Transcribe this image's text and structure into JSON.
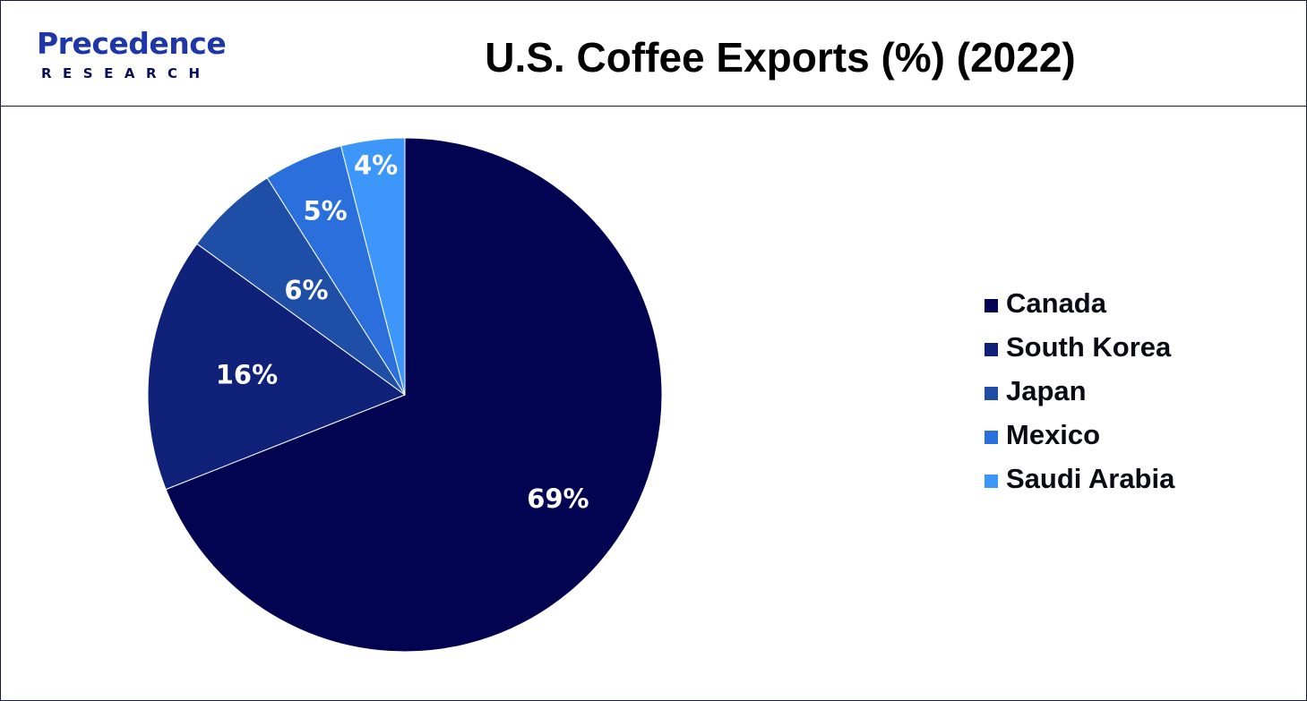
{
  "brand": {
    "name": "Precedence",
    "sub": "RESEARCH"
  },
  "chart_data": {
    "type": "pie",
    "title": "U.S. Coffee Exports (%) (2022)",
    "categories": [
      "Canada",
      "South Korea",
      "Japan",
      "Mexico",
      "Saudi Arabia"
    ],
    "values": [
      69,
      16,
      6,
      5,
      4
    ],
    "value_labels": [
      "69%",
      "16%",
      "6%",
      "5%",
      "4%"
    ],
    "colors": [
      "#020351",
      "#10217a",
      "#1f4ea6",
      "#2b6fdc",
      "#3d97fb"
    ],
    "legend_position": "right"
  }
}
